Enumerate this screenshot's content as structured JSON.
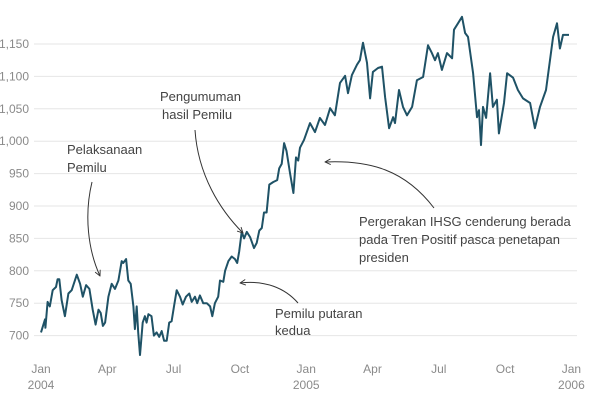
{
  "chart_data": {
    "type": "line",
    "title": "",
    "xlabel": "",
    "ylabel": "",
    "x_unit": "months since Jan 2004",
    "xlim": [
      0,
      24
    ],
    "ylim": [
      660,
      1190
    ],
    "grid": true,
    "line_color": "#1f5266",
    "y_ticks": [
      700,
      750,
      800,
      850,
      900,
      950,
      1000,
      1050,
      1100,
      1150
    ],
    "y_tick_labels": [
      "700",
      "750",
      "800",
      "850",
      "900",
      "950",
      "1,000",
      "1,050",
      "1,100",
      "1,150"
    ],
    "x_ticks": [
      {
        "value": 0,
        "label": "Jan",
        "sub": "2004"
      },
      {
        "value": 3,
        "label": "Apr",
        "sub": ""
      },
      {
        "value": 6,
        "label": "Jul",
        "sub": ""
      },
      {
        "value": 9,
        "label": "Oct",
        "sub": ""
      },
      {
        "value": 12,
        "label": "Jan",
        "sub": "2005"
      },
      {
        "value": 15,
        "label": "Apr",
        "sub": ""
      },
      {
        "value": 18,
        "label": "Jul",
        "sub": ""
      },
      {
        "value": 21,
        "label": "Oct",
        "sub": ""
      },
      {
        "value": 24,
        "label": "Jan",
        "sub": "2006"
      }
    ],
    "series": [
      {
        "name": "IHSG",
        "x": [
          0,
          0.18,
          0.2,
          0.3,
          0.4,
          0.53,
          0.68,
          0.75,
          0.83,
          0.93,
          1.08,
          1.24,
          1.39,
          1.62,
          1.77,
          1.89,
          2.04,
          2.19,
          2.34,
          2.47,
          2.6,
          2.7,
          2.8,
          2.9,
          3.05,
          3.2,
          3.35,
          3.5,
          3.65,
          3.72,
          3.85,
          3.95,
          4.06,
          4.18,
          4.25,
          4.33,
          4.4,
          4.48,
          4.6,
          4.7,
          4.78,
          4.86,
          5.0,
          5.11,
          5.23,
          5.35,
          5.46,
          5.57,
          5.69,
          5.8,
          5.91,
          6.02,
          6.14,
          6.29,
          6.41,
          6.56,
          6.71,
          6.82,
          6.97,
          7.07,
          7.19,
          7.34,
          7.5,
          7.65,
          7.75,
          7.87,
          8.02,
          8.1,
          8.25,
          8.33,
          8.48,
          8.63,
          8.78,
          8.88,
          8.97,
          9.08,
          9.19,
          9.31,
          9.46,
          9.64,
          9.76,
          9.88,
          9.99,
          10.09,
          10.21,
          10.33,
          10.51,
          10.69,
          10.78,
          10.89,
          11.0,
          11.11,
          11.27,
          11.42,
          11.54,
          11.64,
          11.72,
          11.9,
          12.17,
          12.4,
          12.62,
          12.85,
          13.08,
          13.3,
          13.53,
          13.76,
          13.89,
          14.07,
          14.3,
          14.43,
          14.57,
          14.75,
          14.89,
          15.02,
          15.25,
          15.43,
          15.57,
          15.75,
          15.93,
          16.02,
          16.2,
          16.38,
          16.56,
          16.79,
          17.01,
          17.29,
          17.51,
          17.69,
          17.83,
          17.96,
          18.14,
          18.37,
          18.6,
          18.69,
          18.87,
          19.05,
          19.19,
          19.32,
          19.55,
          19.73,
          19.82,
          19.91,
          20.0,
          20.14,
          20.32,
          20.45,
          20.63,
          20.72,
          20.95,
          21.09,
          21.36,
          21.58,
          21.81,
          22.13,
          22.35,
          22.58,
          22.85,
          22.99,
          23.17,
          23.35,
          23.48,
          23.62,
          23.89
        ],
        "values": [
          705,
          725,
          712,
          752,
          745,
          770,
          775,
          787,
          787,
          755,
          730,
          765,
          770,
          794,
          780,
          760,
          778,
          772,
          740,
          717,
          740,
          735,
          715,
          720,
          760,
          780,
          772,
          785,
          815,
          812,
          818,
          785,
          780,
          745,
          710,
          745,
          705,
          670,
          720,
          730,
          720,
          733,
          730,
          700,
          705,
          698,
          707,
          692,
          692,
          720,
          722,
          745,
          770,
          760,
          748,
          760,
          765,
          752,
          760,
          750,
          762,
          750,
          750,
          745,
          730,
          750,
          760,
          785,
          783,
          800,
          815,
          822,
          818,
          812,
          830,
          860,
          850,
          860,
          852,
          835,
          843,
          862,
          866,
          890,
          890,
          933,
          937,
          940,
          958,
          965,
          997,
          985,
          950,
          920,
          975,
          970,
          990,
          1002,
          1028,
          1014,
          1036,
          1025,
          1051,
          1040,
          1090,
          1101,
          1074,
          1102,
          1118,
          1125,
          1152,
          1121,
          1066,
          1107,
          1113,
          1115,
          1068,
          1020,
          1037,
          1028,
          1079,
          1053,
          1040,
          1053,
          1094,
          1099,
          1148,
          1136,
          1125,
          1136,
          1110,
          1136,
          1128,
          1172,
          1182,
          1192,
          1167,
          1161,
          1105,
          1037,
          1048,
          994,
          1053,
          1036,
          1105,
          1053,
          1064,
          1012,
          1059,
          1105,
          1098,
          1079,
          1066,
          1059,
          1020,
          1053,
          1079,
          1115,
          1161,
          1182,
          1143,
          1164,
          1164
        ]
      }
    ],
    "annotations": [
      {
        "lines": [
          "Pelaksanaan",
          "Pemilu"
        ]
      },
      {
        "lines": [
          "Pengumuman",
          "hasil Pemilu"
        ]
      },
      {
        "lines": [
          "Pergerakan IHSG  cenderung berada",
          "pada Tren Positif pasca penetapan",
          "presiden"
        ]
      },
      {
        "lines": [
          "Pemilu putaran",
          "kedua"
        ]
      }
    ]
  }
}
